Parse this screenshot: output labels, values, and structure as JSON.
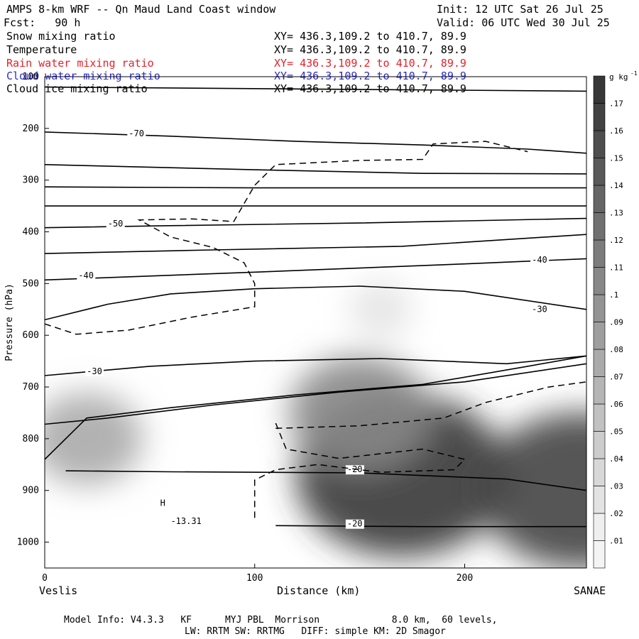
{
  "header": {
    "title": "AMPS 8-km WRF -- Qn Maud Land Coast window",
    "init": "Init: 12 UTC Sat 26 Jul 25",
    "fcst": "Fcst:   90 h",
    "valid": "Valid: 06 UTC Wed 30 Jul 25",
    "fields": [
      {
        "name": "Snow mixing ratio",
        "xy": "XY= 436.3,109.2 to 410.7, 89.9",
        "color": "#000000"
      },
      {
        "name": "Temperature",
        "xy": "XY= 436.3,109.2 to 410.7, 89.9",
        "color": "#000000"
      },
      {
        "name": "Rain water mixing ratio",
        "xy": "XY= 436.3,109.2 to 410.7, 89.9",
        "color": "#e8202a"
      },
      {
        "name": "Cloud water mixing ratio",
        "xy": "XY= 436.3,109.2 to 410.7, 89.9",
        "color": "#2a2ad0"
      },
      {
        "name": "Cloud ice mixing ratio",
        "xy": "XY= 436.3,109.2 to 410.7, 89.9",
        "color": "#000000"
      }
    ]
  },
  "footer": {
    "line1": "Model Info: V4.3.3   KF      MYJ PBL  Morrison             8.0 km,  60 levels,",
    "line2": "LW: RRTM SW: RRTMG   DIFF: simple KM: 2D Smagor"
  },
  "chart_data": {
    "type": "heatmap",
    "xlabel": "Distance (km)",
    "ylabel": "Pressure (hPa)",
    "xlim": [
      0,
      258
    ],
    "ylim": [
      1050,
      100
    ],
    "x_ticks": [
      0,
      100,
      200
    ],
    "y_ticks": [
      100,
      200,
      300,
      400,
      500,
      600,
      700,
      800,
      900,
      1000
    ],
    "left_location": "Veslis",
    "right_location": "SANAE",
    "colorbar": {
      "unit": "g kg",
      "unit_exp": "-1",
      "levels": [
        0.01,
        0.02,
        0.03,
        0.04,
        0.05,
        0.06,
        0.07,
        0.08,
        0.09,
        0.1,
        0.11,
        0.12,
        0.13,
        0.14,
        0.15,
        0.16,
        0.17
      ],
      "labels": [
        ".01",
        ".02",
        ".03",
        ".04",
        ".05",
        ".06",
        ".07",
        ".08",
        ".09",
        ".1",
        ".11",
        ".12",
        ".13",
        ".14",
        ".15",
        ".16",
        ".17"
      ]
    },
    "snow_max": [
      {
        "x": 170,
        "p": 870,
        "value": 0.17
      },
      {
        "x": 255,
        "p": 900,
        "value": 0.16
      },
      {
        "x": 20,
        "p": 800,
        "value": 0.07
      },
      {
        "x": 150,
        "p": 750,
        "value": 0.1
      },
      {
        "x": 160,
        "p": 550,
        "value": 0.02
      }
    ],
    "temperature_isotherms": [
      {
        "points": [
          [
            0,
            120
          ],
          [
            258,
            128
          ]
        ]
      },
      {
        "label": "-70",
        "label_at": [
          40,
          215
        ],
        "points": [
          [
            0,
            207
          ],
          [
            60,
            215
          ],
          [
            120,
            225
          ],
          [
            180,
            232
          ],
          [
            230,
            240
          ],
          [
            258,
            248
          ]
        ]
      },
      {
        "points": [
          [
            0,
            270
          ],
          [
            100,
            280
          ],
          [
            180,
            287
          ],
          [
            258,
            288
          ]
        ]
      },
      {
        "points": [
          [
            0,
            313
          ],
          [
            100,
            315
          ],
          [
            258,
            315
          ]
        ]
      },
      {
        "points": [
          [
            0,
            350
          ],
          [
            258,
            350
          ]
        ]
      },
      {
        "label": "-50",
        "label_at": [
          30,
          390
        ],
        "points": [
          [
            0,
            392
          ],
          [
            60,
            388
          ],
          [
            150,
            383
          ],
          [
            258,
            374
          ]
        ]
      },
      {
        "points": [
          [
            0,
            442
          ],
          [
            80,
            435
          ],
          [
            170,
            428
          ],
          [
            258,
            405
          ]
        ]
      },
      {
        "label": "-40",
        "label_at": [
          16,
          490
        ],
        "label2": "-40",
        "label2_at": [
          232,
          460
        ],
        "points": [
          [
            0,
            493
          ],
          [
            100,
            478
          ],
          [
            200,
            462
          ],
          [
            258,
            452
          ]
        ]
      },
      {
        "label": "-30",
        "label_at": [
          232,
          555
        ],
        "points": [
          [
            0,
            570
          ],
          [
            30,
            540
          ],
          [
            60,
            520
          ],
          [
            100,
            510
          ],
          [
            150,
            505
          ],
          [
            200,
            515
          ],
          [
            258,
            550
          ]
        ]
      },
      {
        "label": "-30",
        "label_at": [
          20,
          675
        ],
        "points": [
          [
            0,
            678
          ],
          [
            50,
            660
          ],
          [
            100,
            650
          ],
          [
            160,
            645
          ],
          [
            220,
            655
          ],
          [
            258,
            640
          ]
        ]
      },
      {
        "points": [
          [
            0,
            772
          ],
          [
            30,
            760
          ],
          [
            80,
            735
          ],
          [
            140,
            710
          ],
          [
            200,
            690
          ],
          [
            258,
            655
          ]
        ]
      },
      {
        "points": [
          [
            0,
            840
          ],
          [
            20,
            760
          ],
          [
            60,
            740
          ],
          [
            120,
            715
          ],
          [
            180,
            695
          ],
          [
            230,
            660
          ],
          [
            258,
            640
          ]
        ]
      },
      {
        "label": "-20",
        "label_at": [
          144,
          865
        ],
        "points": [
          [
            10,
            862
          ],
          [
            60,
            864
          ],
          [
            150,
            866
          ],
          [
            220,
            878
          ],
          [
            258,
            900
          ]
        ]
      },
      {
        "label": "-20",
        "label_at": [
          144,
          970
        ],
        "points": [
          [
            110,
            968
          ],
          [
            180,
            970
          ],
          [
            258,
            970
          ]
        ]
      }
    ],
    "snow_contour_dashed": [
      {
        "points": [
          [
            0,
            578
          ],
          [
            15,
            598
          ],
          [
            40,
            590
          ],
          [
            70,
            565
          ],
          [
            100,
            545
          ],
          [
            100,
            500
          ],
          [
            95,
            460
          ],
          [
            80,
            430
          ],
          [
            60,
            410
          ],
          [
            45,
            377
          ],
          [
            70,
            375
          ],
          [
            90,
            380
          ],
          [
            100,
            310
          ],
          [
            110,
            270
          ],
          [
            150,
            262
          ],
          [
            180,
            260
          ],
          [
            185,
            230
          ],
          [
            210,
            225
          ],
          [
            230,
            245
          ]
        ]
      },
      {
        "points": [
          [
            110,
            780
          ],
          [
            150,
            775
          ],
          [
            190,
            760
          ],
          [
            210,
            730
          ],
          [
            240,
            700
          ],
          [
            258,
            690
          ]
        ]
      },
      {
        "points": [
          [
            110,
            770
          ],
          [
            115,
            820
          ],
          [
            140,
            838
          ],
          [
            180,
            820
          ],
          [
            200,
            840
          ],
          [
            195,
            860
          ],
          [
            160,
            865
          ],
          [
            130,
            850
          ],
          [
            110,
            860
          ],
          [
            100,
            880
          ],
          [
            100,
            960
          ]
        ]
      }
    ],
    "h_marker": {
      "label": "H",
      "x": 55,
      "p": 930
    },
    "min_label": {
      "label": "-13.31",
      "x": 60,
      "p": 965
    }
  }
}
